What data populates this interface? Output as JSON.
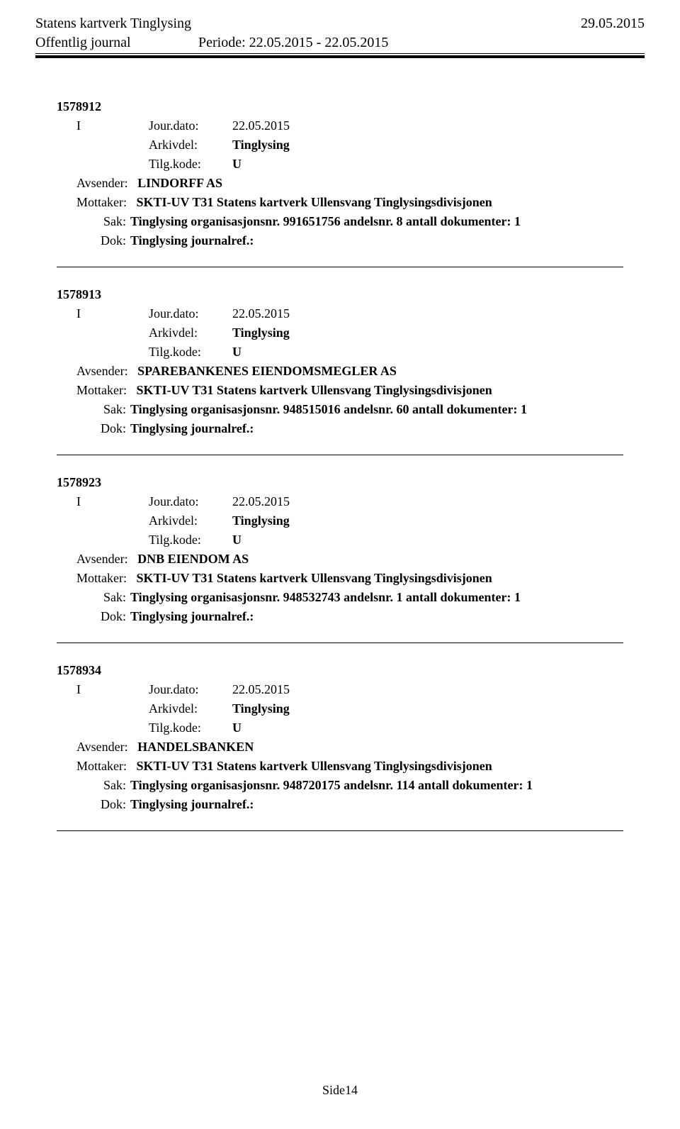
{
  "header": {
    "title": "Statens kartverk Tinglysing",
    "date": "29.05.2015",
    "subtitle": "Offentlig journal",
    "period_label": "Periode:",
    "period_value": "22.05.2015 - 22.05.2015"
  },
  "labels": {
    "jour_dato": "Jour.dato:",
    "arkivdel": "Arkivdel:",
    "tilgkode": "Tilg.kode:",
    "avsender": "Avsender:",
    "mottaker": "Mottaker:",
    "sak": "Sak:",
    "dok": "Dok:"
  },
  "entries": [
    {
      "id": "1578912",
      "type": "I",
      "jour_dato": "22.05.2015",
      "arkivdel": "Tinglysing",
      "tilgkode": "U",
      "avsender": "LINDORFF AS",
      "mottaker": "SKTI-UV T31 Statens kartverk Ullensvang Tinglysingsdivisjonen",
      "sak": "Tinglysing organisasjonsnr. 991651756 andelsnr. 8 antall dokumenter: 1",
      "dok": "Tinglysing journalref.:"
    },
    {
      "id": "1578913",
      "type": "I",
      "jour_dato": "22.05.2015",
      "arkivdel": "Tinglysing",
      "tilgkode": "U",
      "avsender": "SPAREBANKENES EIENDOMSMEGLER AS",
      "mottaker": "SKTI-UV T31 Statens kartverk Ullensvang Tinglysingsdivisjonen",
      "sak": "Tinglysing organisasjonsnr. 948515016 andelsnr. 60 antall dokumenter: 1",
      "dok": "Tinglysing journalref.:"
    },
    {
      "id": "1578923",
      "type": "I",
      "jour_dato": "22.05.2015",
      "arkivdel": "Tinglysing",
      "tilgkode": "U",
      "avsender": "DNB EIENDOM AS",
      "mottaker": "SKTI-UV T31 Statens kartverk Ullensvang Tinglysingsdivisjonen",
      "sak": "Tinglysing organisasjonsnr. 948532743 andelsnr. 1 antall dokumenter: 1",
      "dok": "Tinglysing journalref.:"
    },
    {
      "id": "1578934",
      "type": "I",
      "jour_dato": "22.05.2015",
      "arkivdel": "Tinglysing",
      "tilgkode": "U",
      "avsender": "HANDELSBANKEN",
      "mottaker": "SKTI-UV T31 Statens kartverk Ullensvang Tinglysingsdivisjonen",
      "sak": "Tinglysing organisasjonsnr. 948720175 andelsnr. 114 antall dokumenter: 1",
      "dok": "Tinglysing journalref.:"
    }
  ],
  "footer": {
    "page": "Side14"
  }
}
